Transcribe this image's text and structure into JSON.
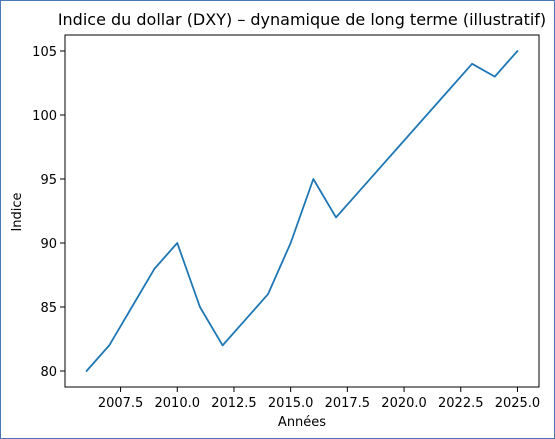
{
  "chart_data": {
    "type": "line",
    "title": "Indice du dollar (DXY) – dynamique de long terme (illustratif)",
    "xlabel": "Années",
    "ylabel": "Indice",
    "xlim": [
      2005.05,
      2025.95
    ],
    "ylim": [
      78.75,
      106.25
    ],
    "x_ticks": [
      2007.5,
      2010.0,
      2012.5,
      2015.0,
      2017.5,
      2020.0,
      2022.5,
      2025.0
    ],
    "x_tick_labels": [
      "2007.5",
      "2010.0",
      "2012.5",
      "2015.0",
      "2017.5",
      "2020.0",
      "2022.5",
      "2025.0"
    ],
    "y_ticks": [
      80,
      85,
      90,
      95,
      100,
      105
    ],
    "y_tick_labels": [
      "80",
      "85",
      "90",
      "95",
      "100",
      "105"
    ],
    "grid": false,
    "series": [
      {
        "color": "#1f77b4",
        "x": [
          2006,
          2007,
          2008,
          2009,
          2010,
          2011,
          2012,
          2013,
          2014,
          2015,
          2016,
          2017,
          2018,
          2019,
          2020,
          2021,
          2022,
          2023,
          2024,
          2025
        ],
        "y": [
          80,
          82,
          85,
          88,
          90,
          85,
          82,
          84,
          86,
          90,
          95,
          92,
          94,
          96,
          98,
          100,
          102,
          104,
          103,
          105
        ]
      }
    ]
  }
}
